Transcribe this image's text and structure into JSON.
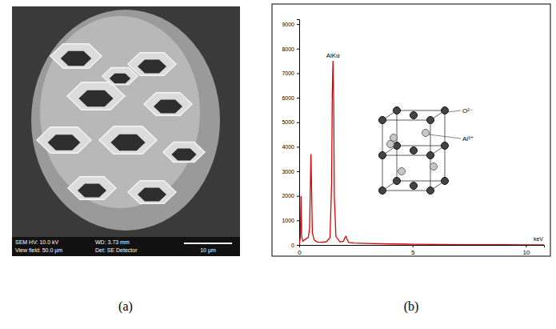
{
  "figure": {
    "captions": [
      "(a)",
      "(b)"
    ],
    "sem_image": {
      "info": [
        "SEM HV: 10.0 kV",
        "WD: 3.73 mm",
        "View field: 50.0 µm",
        "Det: SE Detector"
      ],
      "scale_bar": "10 µm"
    },
    "inset": {
      "labels": [
        "O²⁻",
        "Al³⁺"
      ]
    }
  },
  "chart_data": {
    "type": "line",
    "xlabel": "keV",
    "color": "#e00000",
    "x": [
      0,
      0.05,
      0.08,
      0.11,
      0.16,
      0.22,
      0.3,
      0.4,
      0.46,
      0.5,
      0.52,
      0.54,
      0.58,
      0.66,
      0.8,
      1.0,
      1.2,
      1.36,
      1.43,
      1.46,
      1.49,
      1.52,
      1.55,
      1.62,
      1.8,
      1.95,
      2.02,
      2.06,
      2.1,
      2.18,
      2.4,
      3.0,
      4.0,
      5.0,
      6.0,
      7.0,
      8.0,
      9.0,
      10.0,
      10.8
    ],
    "values": [
      0,
      300,
      2000,
      350,
      150,
      200,
      250,
      300,
      700,
      2800,
      3700,
      2600,
      500,
      200,
      120,
      110,
      130,
      300,
      2500,
      6200,
      7500,
      5800,
      2000,
      350,
      120,
      150,
      300,
      350,
      250,
      100,
      80,
      60,
      40,
      30,
      20,
      15,
      10,
      8,
      5,
      0
    ],
    "xlim": [
      0,
      10.8
    ],
    "xticks": [
      0,
      5,
      10
    ],
    "ylim": [
      0,
      9200
    ],
    "yticks": [
      0,
      1000,
      2000,
      3000,
      4000,
      5000,
      6000,
      7000,
      8000,
      9000
    ],
    "annotations": [
      {
        "text": "AlKα",
        "x": 1.49,
        "y": 7500
      }
    ]
  }
}
